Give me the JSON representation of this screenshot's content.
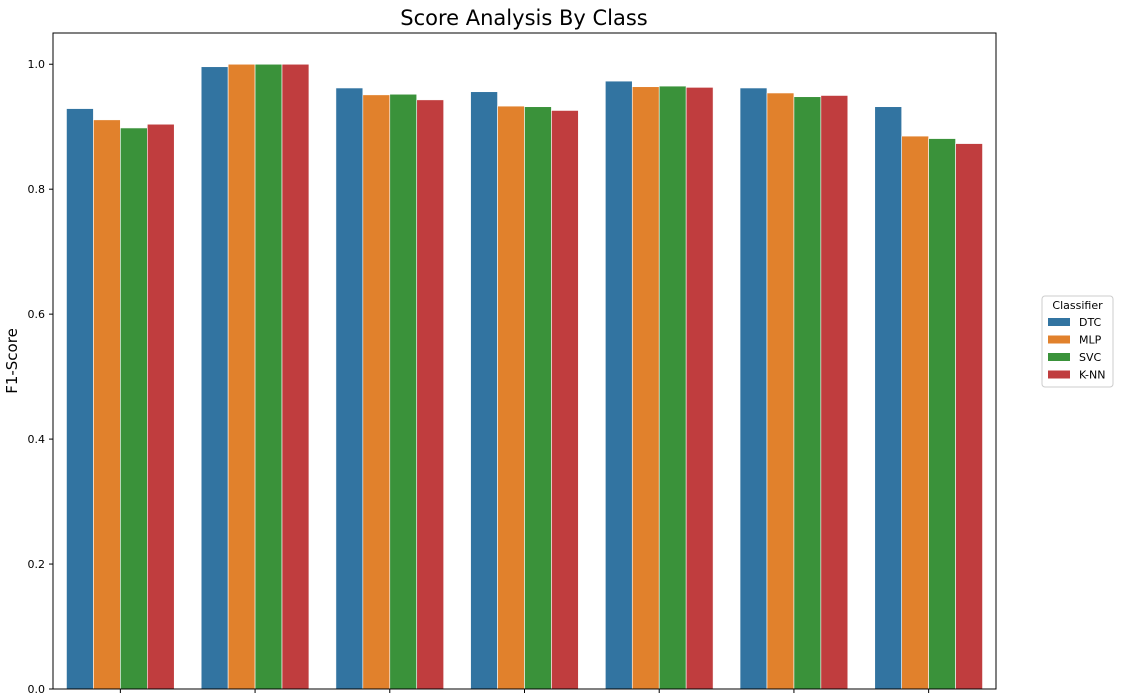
{
  "chart_data": {
    "type": "bar",
    "title": "Score Analysis By Class",
    "xlabel": "",
    "ylabel": "F1-Score",
    "ylim": [
      0,
      1.05
    ],
    "yticks": [
      "0.0",
      "0.2",
      "0.4",
      "0.6",
      "0.8",
      "1.0"
    ],
    "categories": [
      "",
      "",
      "",
      "",
      "",
      "",
      ""
    ],
    "series": [
      {
        "name": "DTC",
        "color": "#3274a1",
        "values": [
          0.929,
          0.996,
          0.962,
          0.956,
          0.973,
          0.962,
          0.932
        ]
      },
      {
        "name": "MLP",
        "color": "#e1812c",
        "values": [
          0.911,
          1.0,
          0.951,
          0.933,
          0.964,
          0.954,
          0.885
        ]
      },
      {
        "name": "SVC",
        "color": "#3a923a",
        "values": [
          0.898,
          1.0,
          0.952,
          0.932,
          0.965,
          0.948,
          0.881
        ]
      },
      {
        "name": "K-NN",
        "color": "#c03d3e",
        "values": [
          0.904,
          1.0,
          0.943,
          0.926,
          0.963,
          0.95,
          0.873
        ]
      }
    ],
    "grid": false,
    "legend": {
      "title": "Classifier",
      "placement": "center-right outside"
    }
  }
}
